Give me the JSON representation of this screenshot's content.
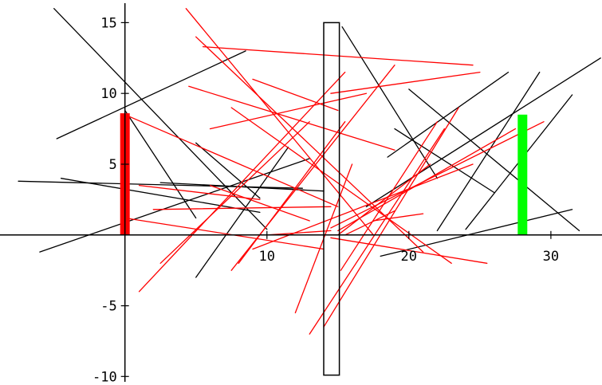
{
  "chart_data": {
    "type": "line",
    "title": "",
    "xlabel": "",
    "ylabel": "",
    "xlim": [
      -8.8,
      33.6
    ],
    "ylim": [
      -10.6,
      16.6
    ],
    "x_ticks": [
      {
        "value": 10,
        "label": "10"
      },
      {
        "value": 20,
        "label": "20"
      },
      {
        "value": 30,
        "label": "30"
      }
    ],
    "y_ticks": [
      {
        "value": 15,
        "label": "15"
      },
      {
        "value": 10,
        "label": "10"
      },
      {
        "value": 5,
        "label": "5"
      },
      {
        "value": -5,
        "label": "-5"
      },
      {
        "value": -10,
        "label": "-10"
      }
    ],
    "grid": false,
    "legend": "none",
    "colors": {
      "black_segments": "#000000",
      "red_segments": "#ff0000",
      "left_bar": "#ff0000",
      "right_bar": "#00ff00",
      "center_slab": "#000000"
    },
    "objects": {
      "left_bar": {
        "x": 0,
        "y_from": 0,
        "y_to": 8.6
      },
      "center_slab": {
        "x_from": 14.0,
        "x_to": 15.1,
        "y_from": -9.9,
        "y_to": 15.0
      },
      "right_bar": {
        "x": 28,
        "y_from": 0,
        "y_to": 8.5
      }
    },
    "series": [
      {
        "color": "#000000",
        "segments": [
          [
            [
              -5.0,
              16.0
            ],
            [
              10.0,
              0.4
            ]
          ],
          [
            [
              -4.8,
              6.8
            ],
            [
              8.5,
              13.0
            ]
          ],
          [
            [
              -7.5,
              3.8
            ],
            [
              12.5,
              3.3
            ]
          ],
          [
            [
              -6.0,
              -1.2
            ],
            [
              13.0,
              5.4
            ]
          ],
          [
            [
              -4.5,
              4.0
            ],
            [
              9.5,
              1.6
            ]
          ],
          [
            [
              2.5,
              3.7
            ],
            [
              14.0,
              3.1
            ]
          ],
          [
            [
              0.0,
              8.8
            ],
            [
              5.0,
              1.2
            ]
          ],
          [
            [
              5.0,
              6.5
            ],
            [
              9.5,
              2.6
            ]
          ],
          [
            [
              5.0,
              -3.0
            ],
            [
              11.5,
              6.2
            ]
          ],
          [
            [
              15.3,
              14.7
            ],
            [
              22.0,
              4.0
            ]
          ],
          [
            [
              20.0,
              10.3
            ],
            [
              32.0,
              0.3
            ]
          ],
          [
            [
              19.0,
              7.5
            ],
            [
              26.0,
              3.0
            ]
          ],
          [
            [
              18.0,
              -1.5
            ],
            [
              31.5,
              1.8
            ]
          ],
          [
            [
              22.0,
              0.3
            ],
            [
              29.2,
              11.5
            ]
          ],
          [
            [
              24.0,
              0.4
            ],
            [
              31.5,
              9.9
            ]
          ],
          [
            [
              17.0,
              2.0
            ],
            [
              33.5,
              12.5
            ]
          ],
          [
            [
              18.5,
              5.5
            ],
            [
              27.0,
              11.5
            ]
          ]
        ]
      },
      {
        "color": "#ff0000",
        "segments": [
          [
            [
              4.3,
              16.0
            ],
            [
              17.5,
              0.0
            ]
          ],
          [
            [
              5.0,
              14.0
            ],
            [
              21.0,
              -1.2
            ]
          ],
          [
            [
              4.5,
              10.5
            ],
            [
              19.0,
              6.0
            ]
          ],
          [
            [
              5.5,
              13.3
            ],
            [
              24.5,
              12.0
            ]
          ],
          [
            [
              7.5,
              9.0
            ],
            [
              23.0,
              -2.0
            ]
          ],
          [
            [
              0.0,
              8.5
            ],
            [
              15.0,
              2.0
            ]
          ],
          [
            [
              6.0,
              7.5
            ],
            [
              17.0,
              10.0
            ]
          ],
          [
            [
              9.0,
              11.0
            ],
            [
              15.0,
              8.8
            ]
          ],
          [
            [
              14.5,
              10.0
            ],
            [
              25.0,
              11.5
            ]
          ],
          [
            [
              1.0,
              -4.0
            ],
            [
              15.5,
              11.5
            ]
          ],
          [
            [
              2.5,
              -2.0
            ],
            [
              13.0,
              8.0
            ]
          ],
          [
            [
              6.0,
              3.5
            ],
            [
              13.0,
              1.0
            ]
          ],
          [
            [
              1.0,
              3.5
            ],
            [
              9.5,
              2.5
            ]
          ],
          [
            [
              2.0,
              1.8
            ],
            [
              14.5,
              2.0
            ]
          ],
          [
            [
              8.0,
              -2.0
            ],
            [
              15.5,
              8.0
            ]
          ],
          [
            [
              12.0,
              -5.5
            ],
            [
              16.0,
              5.0
            ]
          ],
          [
            [
              7.5,
              -2.5
            ],
            [
              19.0,
              12.0
            ]
          ],
          [
            [
              9.0,
              -1.0
            ],
            [
              24.5,
              5.0
            ]
          ],
          [
            [
              15.0,
              0.0
            ],
            [
              21.5,
              5.0
            ]
          ],
          [
            [
              10.0,
              0.0
            ],
            [
              14.5,
              0.3
            ]
          ],
          [
            [
              0.0,
              1.2
            ],
            [
              14.0,
              -1.0
            ]
          ],
          [
            [
              13.0,
              -7.0
            ],
            [
              22.5,
              7.5
            ]
          ],
          [
            [
              14.0,
              -6.5
            ],
            [
              23.5,
              9.0
            ]
          ],
          [
            [
              15.2,
              -2.5
            ],
            [
              22.0,
              8.0
            ]
          ],
          [
            [
              14.5,
              0.5
            ],
            [
              29.5,
              8.0
            ]
          ],
          [
            [
              15.0,
              0.3
            ],
            [
              27.5,
              7.5
            ]
          ],
          [
            [
              14.5,
              -0.2
            ],
            [
              25.5,
              -2.0
            ]
          ],
          [
            [
              15.5,
              0.0
            ],
            [
              19.0,
              1.7
            ]
          ],
          [
            [
              17.5,
              1.0
            ],
            [
              21.0,
              1.5
            ]
          ]
        ]
      }
    ]
  }
}
